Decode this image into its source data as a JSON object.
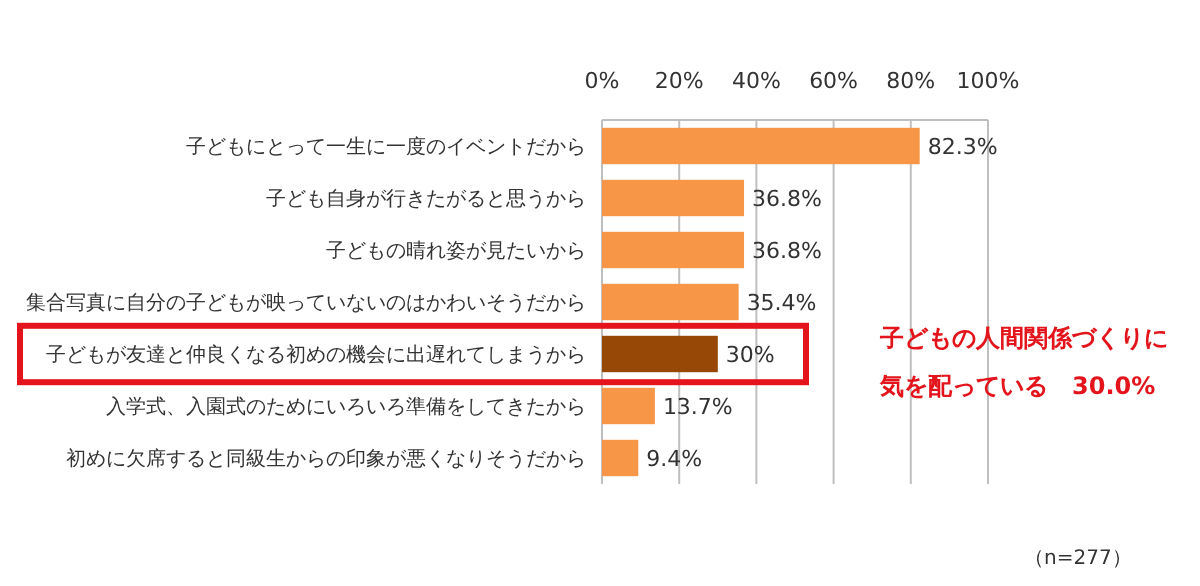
{
  "chart_data": {
    "type": "bar",
    "orientation": "horizontal",
    "categories": [
      "子どもにとって一生に一度のイベントだから",
      "子ども自身が行きたがると思うから",
      "子どもの晴れ姿が見たいから",
      "集合写真に自分の子どもが映っていないのはかわいそうだから",
      "子どもが友達と仲良くなる初めの機会に出遅れてしまうから",
      "入学式、入園式のためにいろいろ準備をしてきたから",
      "初めに欠席すると同級生からの印象が悪くなりそうだから"
    ],
    "values": [
      82.3,
      36.8,
      36.8,
      35.4,
      30,
      13.7,
      9.4
    ],
    "value_labels": [
      "82.3%",
      "36.8%",
      "36.8%",
      "35.4%",
      "30%",
      "13.7%",
      "9.4%"
    ],
    "colors": [
      "#f79646",
      "#f79646",
      "#f79646",
      "#f79646",
      "#974706",
      "#f79646",
      "#f79646"
    ],
    "xlim": [
      0,
      100
    ],
    "xticks": [
      {
        "value": 0,
        "label": "0%"
      },
      {
        "value": 20,
        "label": "20%"
      },
      {
        "value": 40,
        "label": "40%"
      },
      {
        "value": 60,
        "label": "60%"
      },
      {
        "value": 80,
        "label": "80%"
      },
      {
        "value": 100,
        "label": "100%"
      }
    ],
    "grid": "x",
    "annotations": [
      "子どもの人間関係づくりに",
      "気を配っている　30.0%",
      "（n=277）"
    ]
  }
}
